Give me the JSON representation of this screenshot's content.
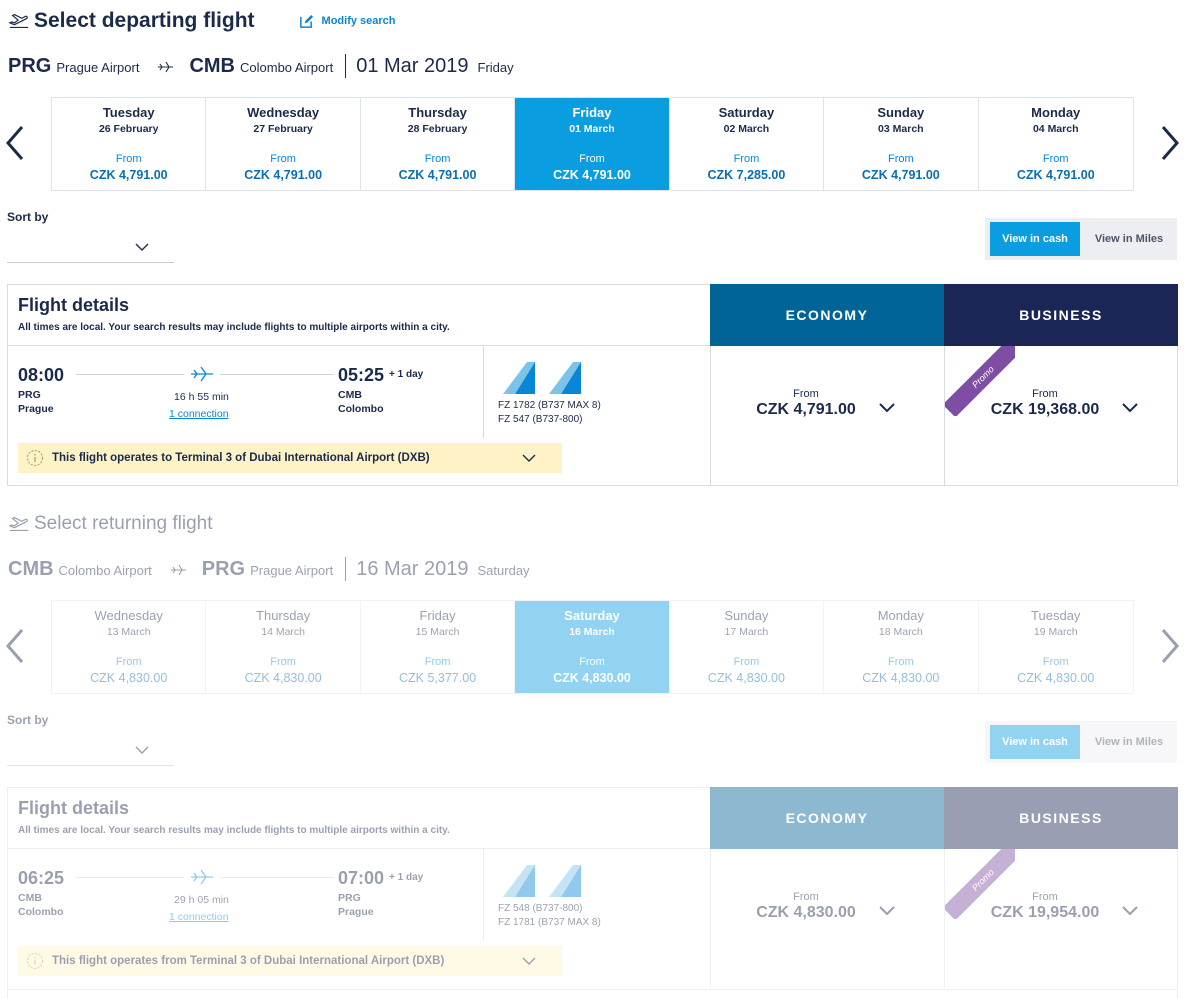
{
  "departing": {
    "title": "Select departing flight",
    "modify_search": "Modify search",
    "route": {
      "from_code": "PRG",
      "from_airport": "Prague Airport",
      "to_code": "CMB",
      "to_airport": "Colombo Airport",
      "date": "01 Mar 2019",
      "day": "Friday"
    },
    "days": [
      {
        "name": "Tuesday",
        "date": "26 February",
        "from": "From",
        "price": "CZK 4,791.00"
      },
      {
        "name": "Wednesday",
        "date": "27 February",
        "from": "From",
        "price": "CZK 4,791.00"
      },
      {
        "name": "Thursday",
        "date": "28 February",
        "from": "From",
        "price": "CZK 4,791.00"
      },
      {
        "name": "Friday",
        "date": "01 March",
        "from": "From",
        "price": "CZK 4,791.00"
      },
      {
        "name": "Saturday",
        "date": "02 March",
        "from": "From",
        "price": "CZK 7,285.00"
      },
      {
        "name": "Sunday",
        "date": "03 March",
        "from": "From",
        "price": "CZK 4,791.00"
      },
      {
        "name": "Monday",
        "date": "04 March",
        "from": "From",
        "price": "CZK 4,791.00"
      }
    ],
    "sort_label": "Sort by",
    "view_cash": "View in cash",
    "view_miles": "View in Miles",
    "details_title": "Flight details",
    "details_sub": "All times are local. Your search results may include flights to multiple airports within a city.",
    "economy": "ECONOMY",
    "business": "BUSINESS",
    "flight": {
      "dep_time": "08:00",
      "dep_code": "PRG",
      "dep_city": "Prague",
      "arr_time": "05:25",
      "plus_day": "+ 1 day",
      "arr_code": "CMB",
      "arr_city": "Colombo",
      "duration": "16 h 55 min",
      "connection": "1 connection",
      "flight1": "FZ  1782  (B737 MAX 8)",
      "flight2": "FZ  547  (B737-800)",
      "notice": "This flight operates to Terminal 3 of Dubai International Airport (DXB)",
      "eco_from": "From",
      "eco_price": "CZK 4,791.00",
      "bus_from": "From",
      "bus_price": "CZK 19,368.00",
      "promo": "Promo"
    }
  },
  "returning": {
    "title": "Select returning flight",
    "route": {
      "from_code": "CMB",
      "from_airport": "Colombo Airport",
      "to_code": "PRG",
      "to_airport": "Prague Airport",
      "date": "16 Mar 2019",
      "day": "Saturday"
    },
    "days": [
      {
        "name": "Wednesday",
        "date": "13 March",
        "from": "From",
        "price": "CZK 4,830.00"
      },
      {
        "name": "Thursday",
        "date": "14 March",
        "from": "From",
        "price": "CZK 4,830.00"
      },
      {
        "name": "Friday",
        "date": "15 March",
        "from": "From",
        "price": "CZK 5,377.00"
      },
      {
        "name": "Saturday",
        "date": "16 March",
        "from": "From",
        "price": "CZK 4,830.00"
      },
      {
        "name": "Sunday",
        "date": "17 March",
        "from": "From",
        "price": "CZK 4,830.00"
      },
      {
        "name": "Monday",
        "date": "18 March",
        "from": "From",
        "price": "CZK 4,830.00"
      },
      {
        "name": "Tuesday",
        "date": "19 March",
        "from": "From",
        "price": "CZK 4,830.00"
      }
    ],
    "sort_label": "Sort by",
    "view_cash": "View in cash",
    "view_miles": "View in Miles",
    "details_title": "Flight details",
    "details_sub": "All times are local. Your search results may include flights to multiple airports within a city.",
    "economy": "ECONOMY",
    "business": "BUSINESS",
    "flight": {
      "dep_time": "06:25",
      "dep_code": "CMB",
      "dep_city": "Colombo",
      "arr_time": "07:00",
      "plus_day": "+ 1 day",
      "arr_code": "PRG",
      "arr_city": "Prague",
      "duration": "29 h 05 min",
      "connection": "1 connection",
      "flight1": "FZ  548  (B737-800)",
      "flight2": "FZ  1781  (B737 MAX 8)",
      "notice": "This flight operates from Terminal 3 of Dubai International Airport (DXB)",
      "eco_from": "From",
      "eco_price": "CZK 4,830.00",
      "bus_from": "From",
      "bus_price": "CZK 19,954.00",
      "promo": "Promo"
    }
  },
  "icons": {
    "plane": "plane-departure-icon",
    "edit": "edit-icon",
    "chevron": "chevron-down-icon",
    "info": "info-icon"
  },
  "colors": {
    "accent": "#0a9ddf",
    "economy": "#006496",
    "business": "#1b2656",
    "promo": "#7d4ea3",
    "notice": "#fdf3c6",
    "text": "#1b2a4a"
  }
}
